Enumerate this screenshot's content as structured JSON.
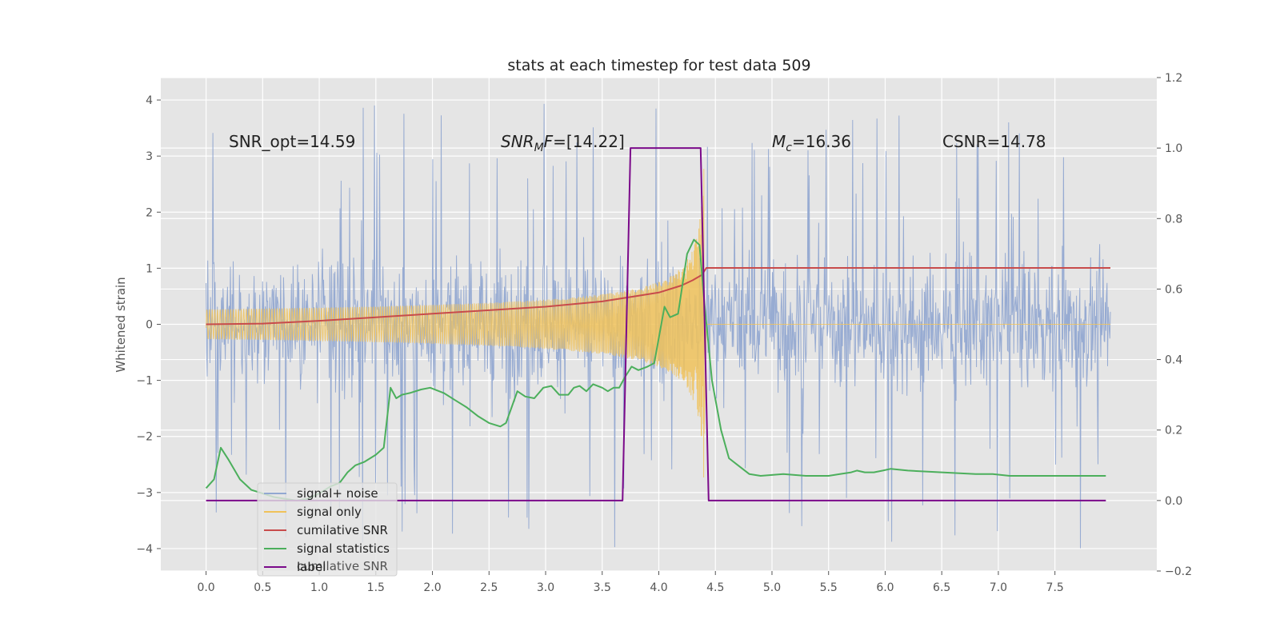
{
  "chart_data": {
    "type": "line",
    "title": "stats at each timestep for test data 509",
    "ylabel": "Whitened strain",
    "xlabel": "",
    "xlim": [
      -0.4,
      8.4
    ],
    "ylim": [
      -4.4,
      4.4
    ],
    "y2lim": [
      -0.2,
      1.2
    ],
    "grid": true,
    "legend_position": "lower-left",
    "xticks": [
      "0.0",
      "0.5",
      "1.0",
      "1.5",
      "2.0",
      "2.5",
      "3.0",
      "3.5",
      "4.0",
      "4.5",
      "5.0",
      "5.5",
      "6.0",
      "6.5",
      "7.0",
      "7.5"
    ],
    "yticks": [
      "−4",
      "−3",
      "−2",
      "−1",
      "0",
      "1",
      "2",
      "3",
      "4"
    ],
    "y2ticks": [
      "−0.2",
      "0.0",
      "0.2",
      "0.4",
      "0.6",
      "0.8",
      "1.0",
      "1.2"
    ],
    "annotations": {
      "snr_opt": "SNR_opt=14.59",
      "snr_mf_main": "SNR",
      "snr_mf_sub": "M",
      "snr_mf_var": "F",
      "snr_mf_value": "=[14.22]",
      "mc_main": "M",
      "mc_sub": "c",
      "mc_value": "=16.36",
      "csnr": "CSNR=14.78"
    },
    "legend_ghost_text": "cumilative SNR",
    "series": [
      {
        "name": "signal+ noise",
        "color": "#92a8d1",
        "axis": "left",
        "envelope": {
          "x_start": 0.0,
          "x_end": 7.99,
          "typical_abs": 1.8,
          "peak_abs": 4.0
        }
      },
      {
        "name": "signal only",
        "color": "#f0c25a",
        "axis": "left",
        "chirp": {
          "x_start": 0.0,
          "x_merge": 4.4,
          "peak_amp": 3.0
        }
      },
      {
        "name": "cumilative SNR",
        "color": "#c84b4b",
        "axis": "right",
        "x": [
          0.0,
          0.5,
          1.0,
          1.5,
          2.0,
          2.5,
          3.0,
          3.5,
          3.8,
          4.0,
          4.2,
          4.3,
          4.38,
          4.42,
          5.0,
          6.0,
          7.0,
          7.99
        ],
        "values": [
          0.5,
          0.502,
          0.51,
          0.52,
          0.53,
          0.54,
          0.55,
          0.565,
          0.58,
          0.59,
          0.61,
          0.625,
          0.64,
          0.66,
          0.66,
          0.66,
          0.66,
          0.66
        ]
      },
      {
        "name": "signal statistics",
        "color": "#4caf5c",
        "axis": "right",
        "x": [
          0.0,
          0.07,
          0.13,
          0.2,
          0.3,
          0.4,
          0.5,
          0.6,
          0.7,
          0.8,
          0.9,
          1.0,
          1.1,
          1.18,
          1.25,
          1.32,
          1.4,
          1.5,
          1.57,
          1.63,
          1.68,
          1.73,
          1.8,
          1.9,
          1.98,
          2.1,
          2.2,
          2.3,
          2.4,
          2.5,
          2.6,
          2.65,
          2.7,
          2.75,
          2.82,
          2.9,
          2.98,
          3.05,
          3.12,
          3.2,
          3.25,
          3.3,
          3.36,
          3.42,
          3.5,
          3.55,
          3.6,
          3.65,
          3.7,
          3.76,
          3.82,
          3.9,
          3.96,
          4.05,
          4.1,
          4.17,
          4.25,
          4.31,
          4.36,
          4.4,
          4.47,
          4.55,
          4.62,
          4.7,
          4.8,
          4.9,
          5.1,
          5.3,
          5.5,
          5.6,
          5.7,
          5.75,
          5.82,
          5.9,
          5.98,
          6.05,
          6.2,
          6.5,
          6.8,
          6.95,
          7.1,
          7.5,
          7.8,
          7.95
        ],
        "values": [
          0.035,
          0.06,
          0.15,
          0.115,
          0.06,
          0.03,
          0.02,
          0.01,
          0.005,
          0.0,
          0.005,
          0.02,
          0.04,
          0.05,
          0.08,
          0.1,
          0.11,
          0.13,
          0.15,
          0.32,
          0.29,
          0.3,
          0.305,
          0.315,
          0.32,
          0.305,
          0.285,
          0.265,
          0.24,
          0.22,
          0.21,
          0.22,
          0.265,
          0.31,
          0.295,
          0.29,
          0.32,
          0.325,
          0.3,
          0.3,
          0.32,
          0.325,
          0.31,
          0.33,
          0.32,
          0.31,
          0.32,
          0.32,
          0.35,
          0.38,
          0.37,
          0.38,
          0.39,
          0.55,
          0.52,
          0.53,
          0.7,
          0.74,
          0.725,
          0.57,
          0.34,
          0.2,
          0.12,
          0.1,
          0.075,
          0.07,
          0.075,
          0.07,
          0.07,
          0.075,
          0.08,
          0.085,
          0.08,
          0.08,
          0.085,
          0.09,
          0.085,
          0.08,
          0.075,
          0.075,
          0.07,
          0.07,
          0.07,
          0.07
        ]
      },
      {
        "name": "label",
        "color": "#7b0a8a",
        "axis": "right",
        "x": [
          0.0,
          3.68,
          3.75,
          4.37,
          4.44,
          7.95
        ],
        "values": [
          0.0,
          0.0,
          1.0,
          1.0,
          0.0,
          0.0
        ]
      }
    ]
  }
}
